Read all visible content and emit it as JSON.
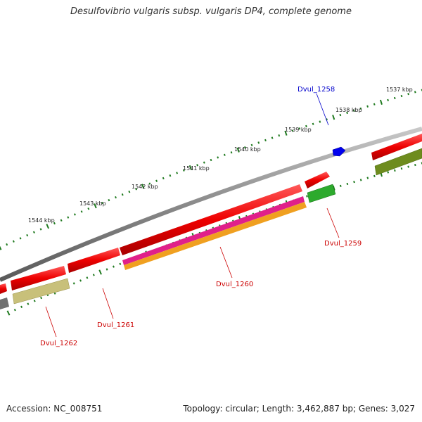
{
  "title": "Desulfovibrio vulgaris subsp. vulgaris DP4, complete genome",
  "accession": "Accession: NC_008751",
  "summary": "Topology: circular; Length: 3,462,887 bp; Genes: 3,027",
  "scale_labels": [
    "1537 kbp",
    "1538 kbp",
    "1539 kbp",
    "1540 kbp",
    "1541 kbp",
    "1542 kbp",
    "1543 kbp",
    "1544 kbp"
  ],
  "gene_labels": [
    {
      "text": "Dvul_1258",
      "color": "#0000cc"
    },
    {
      "text": "Dvul_1259",
      "color": "#cc0000"
    },
    {
      "text": "Dvul_1260",
      "color": "#cc0000"
    },
    {
      "text": "Dvul_1261",
      "color": "#cc0000"
    },
    {
      "text": "Dvul_1262",
      "color": "#cc0000"
    }
  ],
  "colors": {
    "gene": "#e60000",
    "pseudo_small": "#0000ee",
    "cds_green": "#2daa2d",
    "cds_olive": "#6e8c1e",
    "cds_magenta": "#e0208a",
    "cds_orange": "#f0a020",
    "cds_khaki": "#c8c07a",
    "cds_grey": "#707070",
    "backbone": "#8c8c8c",
    "tick": "#1f7a1f"
  }
}
